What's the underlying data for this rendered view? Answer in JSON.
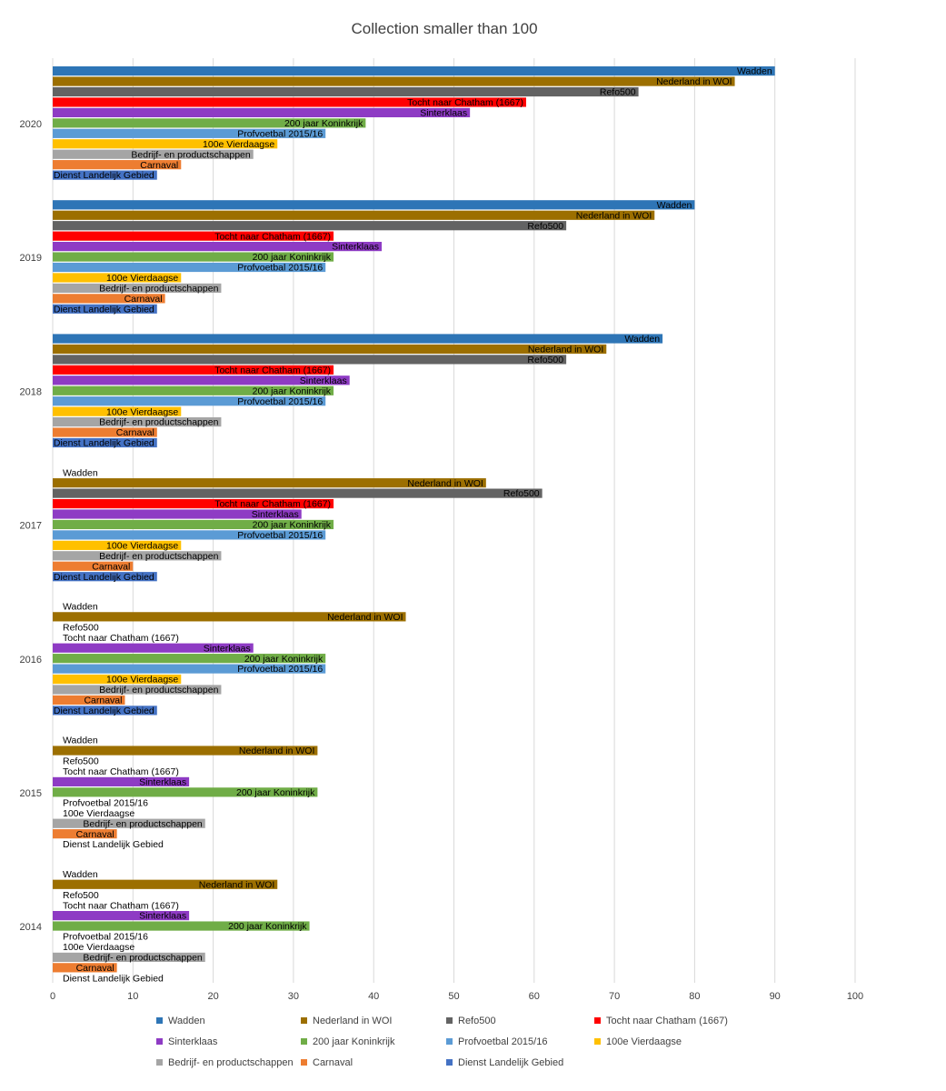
{
  "chart_data": {
    "type": "bar",
    "orientation": "horizontal",
    "title": "Collection smaller than 100",
    "xlabel": "",
    "ylabel": "",
    "xlim": [
      0,
      100
    ],
    "x_ticks": [
      0,
      10,
      20,
      30,
      40,
      50,
      60,
      70,
      80,
      90,
      100
    ],
    "grid": "vertical",
    "legend_position": "bottom",
    "categories": [
      "2020",
      "2019",
      "2018",
      "2017",
      "2016",
      "2015",
      "2014"
    ],
    "series": [
      {
        "name": "Wadden",
        "color": "#2E75B6",
        "values": [
          90,
          80,
          76,
          0,
          0,
          0,
          0
        ]
      },
      {
        "name": "Nederland in WOI",
        "color": "#9C6F00",
        "values": [
          85,
          75,
          69,
          54,
          44,
          33,
          28
        ]
      },
      {
        "name": "Refo500",
        "color": "#636363",
        "values": [
          73,
          64,
          64,
          61,
          0,
          0,
          0
        ]
      },
      {
        "name": "Tocht naar Chatham (1667)",
        "color": "#FF0000",
        "values": [
          59,
          35,
          35,
          35,
          0,
          0,
          0
        ]
      },
      {
        "name": "Sinterklaas",
        "color": "#8E3BC4",
        "values": [
          52,
          41,
          37,
          31,
          25,
          17,
          17
        ]
      },
      {
        "name": "200 jaar Koninkrijk",
        "color": "#70AD47",
        "values": [
          39,
          35,
          35,
          35,
          34,
          33,
          32
        ]
      },
      {
        "name": "Profvoetbal 2015/16",
        "color": "#5B9BD5",
        "values": [
          34,
          34,
          34,
          34,
          34,
          0,
          0
        ]
      },
      {
        "name": "100e Vierdaagse",
        "color": "#FFC000",
        "values": [
          28,
          16,
          16,
          16,
          16,
          0,
          0
        ]
      },
      {
        "name": "Bedrijf- en productschappen",
        "color": "#A5A5A5",
        "values": [
          25,
          21,
          21,
          21,
          21,
          19,
          19
        ]
      },
      {
        "name": "Carnaval",
        "color": "#ED7D31",
        "values": [
          16,
          14,
          13,
          10,
          9,
          8,
          8
        ]
      },
      {
        "name": "Dienst Landelijk Gebied",
        "color": "#4472C4",
        "values": [
          13,
          13,
          13,
          13,
          13,
          0,
          0
        ]
      }
    ]
  }
}
